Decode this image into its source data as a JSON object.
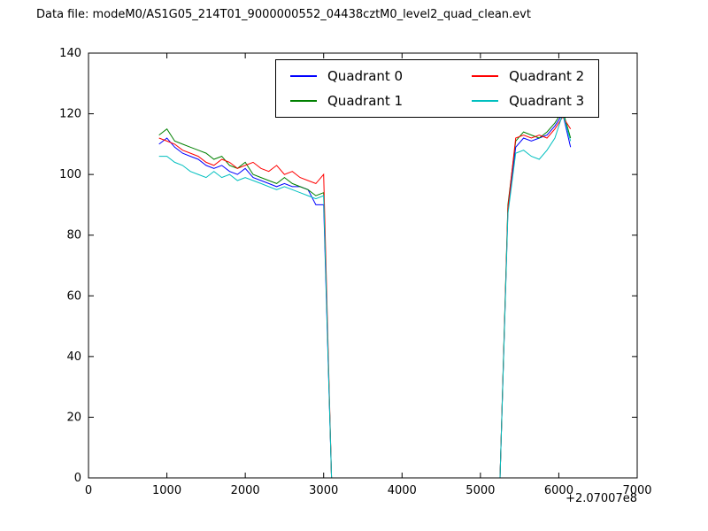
{
  "title": "Data file: modeM0/AS1G05_214T01_9000000552_04438cztM0_level2_quad_clean.evt",
  "chart_data": {
    "type": "line",
    "title": "Data file: modeM0/AS1G05_214T01_9000000552_04438cztM0_level2_quad_clean.evt",
    "xlabel": "",
    "ylabel": "",
    "x_offset_label": "+2.07007e8",
    "xlim": [
      0,
      7000
    ],
    "ylim": [
      0,
      140
    ],
    "xticks": [
      0,
      1000,
      2000,
      3000,
      4000,
      5000,
      6000,
      7000
    ],
    "yticks": [
      0,
      20,
      40,
      60,
      80,
      100,
      120,
      140
    ],
    "grid": false,
    "legend_position": "upper center",
    "legend_columns": 2,
    "axis_color": "#000000",
    "series": [
      {
        "name": "Quadrant 0",
        "color": "#0000ff",
        "x": [
          900,
          1000,
          1100,
          1200,
          1300,
          1400,
          1500,
          1600,
          1700,
          1800,
          1900,
          2000,
          2100,
          2200,
          2300,
          2400,
          2500,
          2600,
          2700,
          2800,
          2900,
          3000,
          3100,
          5250,
          5350,
          5450,
          5550,
          5650,
          5750,
          5850,
          5950,
          6050,
          6150
        ],
        "y": [
          110,
          112,
          109,
          107,
          106,
          105,
          103,
          102,
          103,
          101,
          100,
          102,
          99,
          98,
          97,
          96,
          97,
          96,
          96,
          95,
          90,
          90,
          0,
          0,
          88,
          109,
          112,
          111,
          112,
          113,
          116,
          120,
          109
        ]
      },
      {
        "name": "Quadrant 1",
        "color": "#008000",
        "x": [
          900,
          1000,
          1100,
          1200,
          1300,
          1400,
          1500,
          1600,
          1700,
          1800,
          1900,
          2000,
          2100,
          2200,
          2300,
          2400,
          2500,
          2600,
          2700,
          2800,
          2900,
          3000,
          3100,
          5250,
          5350,
          5450,
          5550,
          5650,
          5750,
          5850,
          5950,
          6050,
          6150
        ],
        "y": [
          113,
          115,
          111,
          110,
          109,
          108,
          107,
          105,
          106,
          103,
          102,
          104,
          100,
          99,
          98,
          97,
          99,
          97,
          96,
          95,
          93,
          94,
          0,
          0,
          90,
          111,
          114,
          113,
          112,
          114,
          117,
          121,
          112
        ]
      },
      {
        "name": "Quadrant 2",
        "color": "#ff0000",
        "x": [
          900,
          1000,
          1100,
          1200,
          1300,
          1400,
          1500,
          1600,
          1700,
          1800,
          1900,
          2000,
          2100,
          2200,
          2300,
          2400,
          2500,
          2600,
          2700,
          2800,
          2900,
          3000,
          3100,
          5250,
          5350,
          5450,
          5550,
          5650,
          5750,
          5850,
          5950,
          6050,
          6150
        ],
        "y": [
          112,
          111,
          110,
          108,
          107,
          106,
          104,
          103,
          105,
          104,
          102,
          103,
          104,
          102,
          101,
          103,
          100,
          101,
          99,
          98,
          97,
          100,
          0,
          0,
          89,
          112,
          113,
          112,
          113,
          112,
          115,
          119,
          115
        ]
      },
      {
        "name": "Quadrant 3",
        "color": "#00bfbf",
        "x": [
          900,
          1000,
          1100,
          1200,
          1300,
          1400,
          1500,
          1600,
          1700,
          1800,
          1900,
          2000,
          2100,
          2200,
          2300,
          2400,
          2500,
          2600,
          2700,
          2800,
          2900,
          3000,
          3100,
          5250,
          5350,
          5450,
          5550,
          5650,
          5750,
          5850,
          5950,
          6050,
          6150
        ],
        "y": [
          106,
          106,
          104,
          103,
          101,
          100,
          99,
          101,
          99,
          100,
          98,
          99,
          98,
          97,
          96,
          95,
          96,
          95,
          94,
          93,
          92,
          93,
          0,
          0,
          87,
          107,
          108,
          106,
          105,
          108,
          112,
          120,
          111
        ]
      }
    ]
  }
}
